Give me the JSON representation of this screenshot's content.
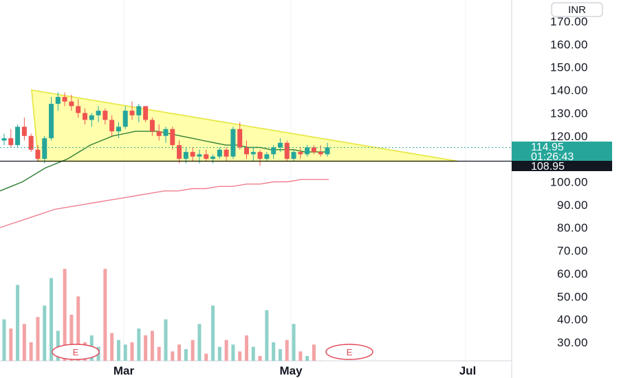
{
  "currency": "INR",
  "price_axis": {
    "ticks": [
      "170.00",
      "160.00",
      "150.00",
      "140.00",
      "130.00",
      "120.00",
      "100.00",
      "90.00",
      "80.00",
      "70.00",
      "60.00",
      "50.00",
      "40.00",
      "30.00"
    ]
  },
  "x_axis": {
    "labels": [
      "Mar",
      "May",
      "Jul"
    ]
  },
  "last_price": {
    "value": "114.95",
    "countdown": "01:26:43",
    "color": "#26a69a"
  },
  "support_line": {
    "value": "108.95",
    "color": "#131722"
  },
  "earnings_markers": [
    "E",
    "E"
  ],
  "colors": {
    "up": "#26a69a",
    "down": "#ef5350",
    "triangle_fill": "#ffff66",
    "ma_fast": "#2e7d32",
    "ma_slow": "#ef7f8f"
  },
  "chart_data": {
    "type": "candlestick",
    "x_axis_type": "time",
    "price_range": [
      20,
      172
    ],
    "triangle_pattern": {
      "upper_line": [
        [
          0.0,
          140
        ],
        [
          1.0,
          109
        ]
      ],
      "lower_line_level": 109
    },
    "candles": [
      [
        118,
        121,
        116,
        119
      ],
      [
        119,
        123,
        115,
        116
      ],
      [
        116,
        125,
        115,
        124
      ],
      [
        124,
        128,
        118,
        120
      ],
      [
        120,
        121,
        113,
        114
      ],
      [
        114,
        116,
        109,
        110
      ],
      [
        110,
        120,
        108,
        119
      ],
      [
        119,
        137,
        118,
        134
      ],
      [
        134,
        139,
        131,
        137
      ],
      [
        137,
        139,
        133,
        135
      ],
      [
        135,
        138,
        131,
        133
      ],
      [
        133,
        136,
        128,
        130
      ],
      [
        130,
        132,
        125,
        127
      ],
      [
        127,
        130,
        124,
        129
      ],
      [
        129,
        133,
        126,
        131
      ],
      [
        131,
        132,
        125,
        127
      ],
      [
        127,
        129,
        120,
        122
      ],
      [
        122,
        126,
        119,
        124
      ],
      [
        124,
        133,
        123,
        131
      ],
      [
        131,
        135,
        127,
        129
      ],
      [
        129,
        134,
        126,
        133
      ],
      [
        133,
        133,
        126,
        127
      ],
      [
        127,
        128,
        120,
        122
      ],
      [
        122,
        125,
        118,
        120
      ],
      [
        120,
        124,
        117,
        123
      ],
      [
        123,
        124,
        114,
        116
      ],
      [
        116,
        118,
        108,
        110
      ],
      [
        110,
        115,
        108,
        113
      ],
      [
        113,
        115,
        109,
        111
      ],
      [
        111,
        114,
        108,
        112
      ],
      [
        112,
        114,
        109,
        110
      ],
      [
        110,
        112,
        108,
        111
      ],
      [
        111,
        115,
        110,
        114
      ],
      [
        114,
        115,
        109,
        111
      ],
      [
        111,
        124,
        110,
        123
      ],
      [
        123,
        126,
        114,
        115
      ],
      [
        115,
        118,
        110,
        112
      ],
      [
        112,
        115,
        109,
        113
      ],
      [
        113,
        114,
        107,
        110
      ],
      [
        110,
        113,
        109,
        112
      ],
      [
        112,
        116,
        110,
        115
      ],
      [
        115,
        119,
        113,
        117
      ],
      [
        117,
        118,
        109,
        110
      ],
      [
        110,
        114,
        109,
        113
      ],
      [
        113,
        115,
        110,
        112
      ],
      [
        112,
        116,
        111,
        115
      ],
      [
        115,
        116,
        112,
        113
      ],
      [
        113,
        116,
        111,
        112
      ],
      [
        112,
        117,
        111,
        115
      ]
    ],
    "volume": [
      40,
      36,
      55,
      38,
      30,
      41,
      46,
      58,
      35,
      62,
      42,
      50,
      30,
      33,
      28,
      62,
      34,
      31,
      29,
      30,
      36,
      33,
      35,
      28,
      40,
      26,
      29,
      27,
      31,
      38,
      25,
      46,
      28,
      31,
      29,
      26,
      33,
      28,
      24,
      44,
      30,
      27,
      31,
      38,
      26,
      24,
      29,
      22,
      21
    ],
    "ma_fast": [
      96,
      98,
      100,
      103,
      106,
      108,
      110,
      113,
      116,
      118,
      120,
      121,
      122,
      122,
      122,
      121,
      120,
      119,
      118,
      117,
      116,
      116,
      115,
      115,
      114,
      114,
      114,
      113,
      113,
      113
    ],
    "ma_slow": [
      80,
      82,
      84,
      86,
      88,
      89,
      90,
      91,
      92,
      93,
      94,
      95,
      96,
      96,
      97,
      97,
      98,
      98,
      99,
      99,
      100,
      100,
      101,
      101,
      101
    ]
  }
}
